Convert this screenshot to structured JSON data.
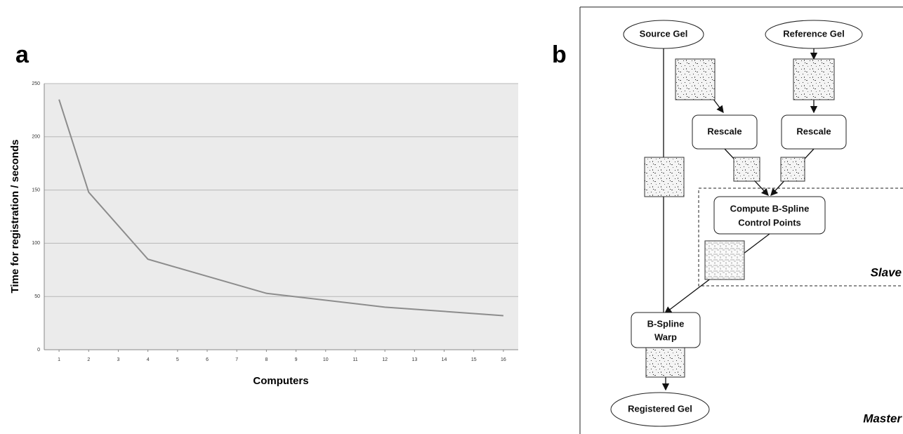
{
  "panels": {
    "a": "a",
    "b": "b"
  },
  "chart_data": {
    "type": "line",
    "x": [
      1,
      2,
      4,
      8,
      12,
      16
    ],
    "series": [
      {
        "color": "#8c8c8c",
        "values": [
          235,
          148,
          85,
          53,
          40,
          32
        ]
      }
    ],
    "xlabel": "Computers",
    "ylabel": "Time for registration / seconds",
    "xlim": [
      0.5,
      16.5
    ],
    "xticks": [
      1,
      2,
      3,
      4,
      5,
      6,
      7,
      8,
      9,
      10,
      11,
      12,
      13,
      14,
      15,
      16
    ],
    "ylim": [
      0,
      250
    ],
    "yticks": [
      0,
      50,
      100,
      150,
      200,
      250
    ],
    "grid": true
  },
  "diagram": {
    "nodes": [
      {
        "lines": [
          "Source Gel"
        ]
      },
      {
        "lines": [
          "Reference Gel"
        ]
      },
      {
        "lines": [
          "Rescale"
        ]
      },
      {
        "lines": [
          "Rescale"
        ]
      },
      {
        "lines": [
          "Compute B-Spline",
          "Control Points"
        ]
      },
      {
        "lines": [
          "B-Spline",
          "Warp"
        ]
      },
      {
        "lines": [
          "Registered Gel"
        ]
      }
    ],
    "regions": [
      "Slave",
      "Master"
    ]
  }
}
